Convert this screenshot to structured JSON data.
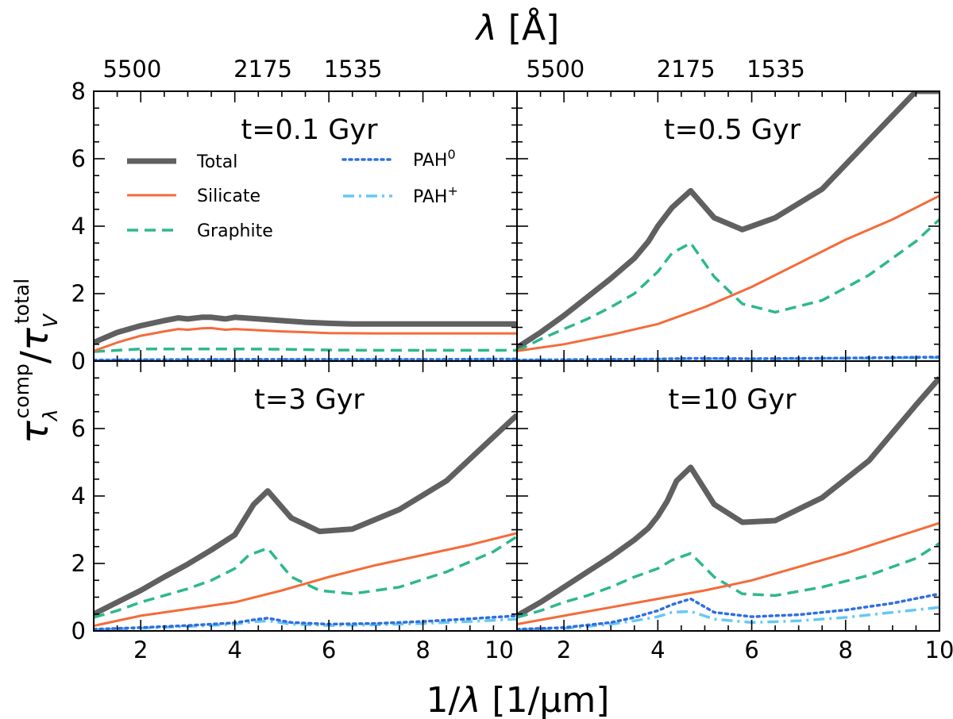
{
  "figure": {
    "top_axis_title": {
      "symbol": "λ",
      "unit": "[Å]"
    },
    "x_axis_title": {
      "prefix": "1/",
      "symbol": "λ",
      "unit": "[1/µm]"
    },
    "y_axis_title": {
      "num_symbol": "τ",
      "num_sub": "λ",
      "num_sup": "comp",
      "slash": "/",
      "den_symbol": "τ",
      "den_sub": "V",
      "den_sup": "total"
    }
  },
  "chart_data": {
    "type": "line",
    "layout": "2x2 panels, shared axes",
    "xlim": [
      1,
      10
    ],
    "ylim": [
      0,
      8
    ],
    "x_ticks": [
      2,
      4,
      6,
      8,
      10
    ],
    "x_tick_labels": [
      "2",
      "4",
      "6",
      "8",
      "10"
    ],
    "left_panel_x_tick_labels": [
      "2",
      "4",
      "6",
      "8",
      "10"
    ],
    "y_ticks": [
      0,
      2,
      4,
      6,
      8
    ],
    "y_tick_labels": [
      "0",
      "2",
      "4",
      "6",
      "8"
    ],
    "top_ticks": [
      1.818,
      4.598,
      6.515
    ],
    "top_tick_labels": [
      "5500",
      "2175",
      "1535"
    ],
    "legend": [
      {
        "key": "total",
        "label": "Total",
        "color": "#606060",
        "style": "solid-thick"
      },
      {
        "key": "silicate",
        "label": "Silicate",
        "color": "#F46B3A",
        "style": "solid"
      },
      {
        "key": "graphite",
        "label": "Graphite",
        "color": "#2DB88C",
        "style": "dashed"
      },
      {
        "key": "pah0",
        "label": "PAH",
        "sup": "0",
        "color": "#2F6FE0",
        "style": "dotted"
      },
      {
        "key": "pahp",
        "label": "PAH",
        "sup": "+",
        "color": "#66C8F5",
        "style": "dashdot"
      }
    ],
    "panels": [
      {
        "title": "t=0.1 Gyr",
        "series": {
          "total": {
            "x": [
              1.0,
              1.5,
              2.0,
              2.5,
              2.8,
              3.0,
              3.3,
              3.5,
              3.8,
              4.0,
              4.5,
              5.0,
              5.5,
              6.0,
              6.5,
              7.0,
              8.0,
              9.0,
              10.0
            ],
            "y": [
              0.55,
              0.85,
              1.05,
              1.2,
              1.28,
              1.25,
              1.3,
              1.3,
              1.25,
              1.3,
              1.25,
              1.2,
              1.15,
              1.12,
              1.1,
              1.1,
              1.1,
              1.1,
              1.1
            ]
          },
          "silicate": {
            "x": [
              1.0,
              1.5,
              2.0,
              2.5,
              2.8,
              3.0,
              3.3,
              3.5,
              3.8,
              4.0,
              5.0,
              6.0,
              7.0,
              8.0,
              9.0,
              10.0
            ],
            "y": [
              0.3,
              0.55,
              0.75,
              0.88,
              0.95,
              0.93,
              0.97,
              0.98,
              0.93,
              0.95,
              0.88,
              0.83,
              0.82,
              0.82,
              0.82,
              0.82
            ]
          },
          "graphite": {
            "x": [
              1.0,
              2.0,
              3.0,
              4.0,
              5.0,
              6.0,
              7.0,
              8.0,
              9.0,
              10.0
            ],
            "y": [
              0.28,
              0.36,
              0.36,
              0.36,
              0.35,
              0.33,
              0.32,
              0.32,
              0.32,
              0.32
            ]
          },
          "pah0": {
            "x": [
              1.0,
              2.0,
              4.0,
              6.0,
              8.0,
              10.0
            ],
            "y": [
              0.03,
              0.04,
              0.05,
              0.05,
              0.05,
              0.06
            ]
          },
          "pahp": {
            "x": [
              1.0,
              2.0,
              4.0,
              6.0,
              8.0,
              10.0
            ],
            "y": [
              0.02,
              0.03,
              0.04,
              0.04,
              0.04,
              0.05
            ]
          }
        }
      },
      {
        "title": "t=0.5 Gyr",
        "series": {
          "total": {
            "x": [
              1.0,
              1.5,
              2.0,
              2.5,
              3.0,
              3.5,
              3.8,
              4.0,
              4.3,
              4.7,
              5.2,
              5.8,
              6.5,
              7.5,
              8.5,
              9.5,
              10.0
            ],
            "y": [
              0.4,
              0.85,
              1.35,
              1.9,
              2.45,
              3.05,
              3.55,
              4.0,
              4.55,
              5.05,
              4.25,
              3.9,
              4.25,
              5.1,
              6.55,
              8.0,
              8.0
            ]
          },
          "silicate": {
            "x": [
              1.0,
              2.0,
              3.0,
              4.0,
              5.0,
              6.0,
              7.0,
              8.0,
              9.0,
              10.0
            ],
            "y": [
              0.3,
              0.5,
              0.78,
              1.1,
              1.6,
              2.2,
              2.9,
              3.6,
              4.2,
              4.9
            ]
          },
          "graphite": {
            "x": [
              1.0,
              1.5,
              2.0,
              2.5,
              3.0,
              3.5,
              4.0,
              4.3,
              4.7,
              5.2,
              5.8,
              6.5,
              7.5,
              8.5,
              9.5,
              10.0
            ],
            "y": [
              0.3,
              0.65,
              0.95,
              1.25,
              1.6,
              2.0,
              2.65,
              3.2,
              3.5,
              2.5,
              1.7,
              1.45,
              1.8,
              2.55,
              3.55,
              4.2
            ]
          },
          "pah0": {
            "x": [
              1.0,
              4.0,
              4.7,
              6.0,
              8.0,
              10.0
            ],
            "y": [
              0.03,
              0.06,
              0.08,
              0.07,
              0.09,
              0.12
            ]
          },
          "pahp": {
            "x": [
              1.0,
              4.0,
              4.7,
              6.0,
              8.0,
              10.0
            ],
            "y": [
              0.02,
              0.05,
              0.07,
              0.06,
              0.08,
              0.1
            ]
          }
        }
      },
      {
        "title": "t=3 Gyr",
        "series": {
          "total": {
            "x": [
              1.0,
              1.5,
              2.0,
              2.5,
              3.0,
              3.5,
              4.0,
              4.2,
              4.4,
              4.7,
              5.2,
              5.8,
              6.5,
              7.5,
              8.5,
              9.5,
              10.0
            ],
            "y": [
              0.5,
              0.85,
              1.2,
              1.6,
              1.98,
              2.4,
              2.85,
              3.3,
              3.75,
              4.15,
              3.35,
              2.95,
              3.02,
              3.6,
              4.45,
              5.75,
              6.4
            ]
          },
          "silicate": {
            "x": [
              1.0,
              2.0,
              3.0,
              4.0,
              5.0,
              6.0,
              7.0,
              8.0,
              9.0,
              10.0
            ],
            "y": [
              0.15,
              0.45,
              0.65,
              0.85,
              1.2,
              1.6,
              1.95,
              2.25,
              2.55,
              2.9
            ]
          },
          "graphite": {
            "x": [
              1.0,
              1.5,
              2.0,
              2.5,
              3.0,
              3.5,
              4.0,
              4.3,
              4.7,
              5.2,
              5.8,
              6.5,
              7.5,
              8.5,
              9.5,
              10.0
            ],
            "y": [
              0.4,
              0.6,
              0.85,
              1.05,
              1.25,
              1.5,
              1.85,
              2.25,
              2.45,
              1.6,
              1.2,
              1.1,
              1.3,
              1.75,
              2.35,
              2.8
            ]
          },
          "pah0": {
            "x": [
              1.0,
              2.0,
              3.0,
              4.0,
              4.4,
              4.7,
              5.2,
              6.0,
              7.0,
              8.0,
              9.0,
              10.0
            ],
            "y": [
              0.05,
              0.1,
              0.16,
              0.24,
              0.33,
              0.38,
              0.25,
              0.2,
              0.22,
              0.28,
              0.36,
              0.45
            ]
          },
          "pahp": {
            "x": [
              1.0,
              2.0,
              3.0,
              4.0,
              4.4,
              4.7,
              5.2,
              6.0,
              7.0,
              8.0,
              9.0,
              10.0
            ],
            "y": [
              0.04,
              0.08,
              0.13,
              0.2,
              0.27,
              0.3,
              0.2,
              0.16,
              0.18,
              0.22,
              0.28,
              0.35
            ]
          }
        }
      },
      {
        "title": "t=10 Gyr",
        "series": {
          "total": {
            "x": [
              1.0,
              1.5,
              2.0,
              2.5,
              3.0,
              3.5,
              3.8,
              4.0,
              4.2,
              4.4,
              4.7,
              5.2,
              5.8,
              6.5,
              7.5,
              8.5,
              9.5,
              10.0
            ],
            "y": [
              0.45,
              0.85,
              1.3,
              1.75,
              2.2,
              2.7,
              3.05,
              3.4,
              3.85,
              4.45,
              4.85,
              3.75,
              3.22,
              3.27,
              3.95,
              5.05,
              6.7,
              7.5
            ]
          },
          "silicate": {
            "x": [
              1.0,
              2.0,
              3.0,
              4.0,
              5.0,
              6.0,
              7.0,
              8.0,
              9.0,
              10.0
            ],
            "y": [
              0.2,
              0.45,
              0.7,
              0.95,
              1.2,
              1.5,
              1.9,
              2.3,
              2.75,
              3.2
            ]
          },
          "graphite": {
            "x": [
              1.0,
              1.5,
              2.0,
              2.5,
              3.0,
              3.5,
              4.0,
              4.3,
              4.7,
              5.2,
              5.8,
              6.5,
              7.5,
              8.5,
              9.5,
              10.0
            ],
            "y": [
              0.4,
              0.6,
              0.85,
              1.05,
              1.3,
              1.6,
              1.85,
              2.1,
              2.3,
              1.6,
              1.1,
              1.05,
              1.3,
              1.65,
              2.15,
              2.6
            ]
          },
          "pah0": {
            "x": [
              1.0,
              2.0,
              3.0,
              3.5,
              4.0,
              4.3,
              4.7,
              5.2,
              6.0,
              7.0,
              8.0,
              9.0,
              10.0
            ],
            "y": [
              0.05,
              0.1,
              0.25,
              0.4,
              0.6,
              0.78,
              0.95,
              0.55,
              0.42,
              0.48,
              0.62,
              0.82,
              1.1
            ]
          },
          "pahp": {
            "x": [
              1.0,
              2.0,
              3.0,
              3.5,
              4.0,
              4.3,
              4.7,
              5.2,
              6.0,
              7.0,
              8.0,
              9.0,
              10.0
            ],
            "y": [
              0.03,
              0.07,
              0.2,
              0.3,
              0.42,
              0.55,
              0.58,
              0.35,
              0.25,
              0.3,
              0.4,
              0.55,
              0.7
            ]
          }
        }
      }
    ]
  }
}
